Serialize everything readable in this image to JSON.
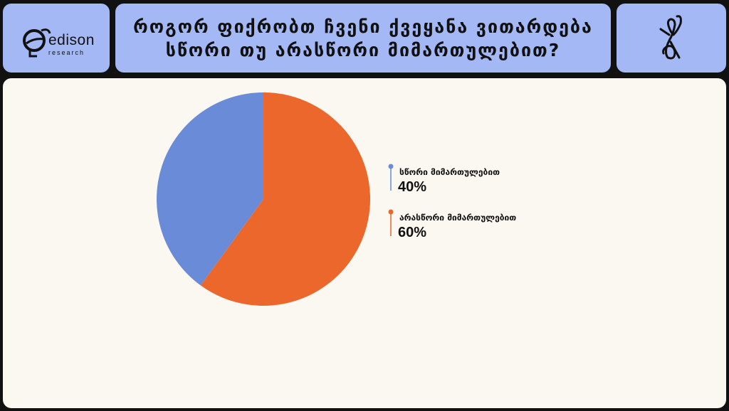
{
  "header": {
    "logo_text": "edison",
    "logo_subtext": "research",
    "title_line1": "როგორ ფიქრობთ ჩვენი ქვეყანა ვითარდება",
    "title_line2": "სწორი თუ არასწორი მიმართულებით?"
  },
  "colors": {
    "panel": "#a4b8f5",
    "background": "#fbf8f1",
    "frame": "#111111"
  },
  "icons": {
    "logo": "edison-research-logo",
    "decoration": "person-figure-icon"
  },
  "chart_data": {
    "type": "pie",
    "start_angle_deg": 0,
    "direction": "counterclockwise",
    "slices": [
      {
        "label": "სწორი მიმართულებით",
        "value": 40,
        "value_label": "40%",
        "color": "#6a8bd8"
      },
      {
        "label": "არასწორი მიმართულებით",
        "value": 60,
        "value_label": "60%",
        "color": "#ec672c"
      }
    ],
    "legend_position": "right"
  }
}
